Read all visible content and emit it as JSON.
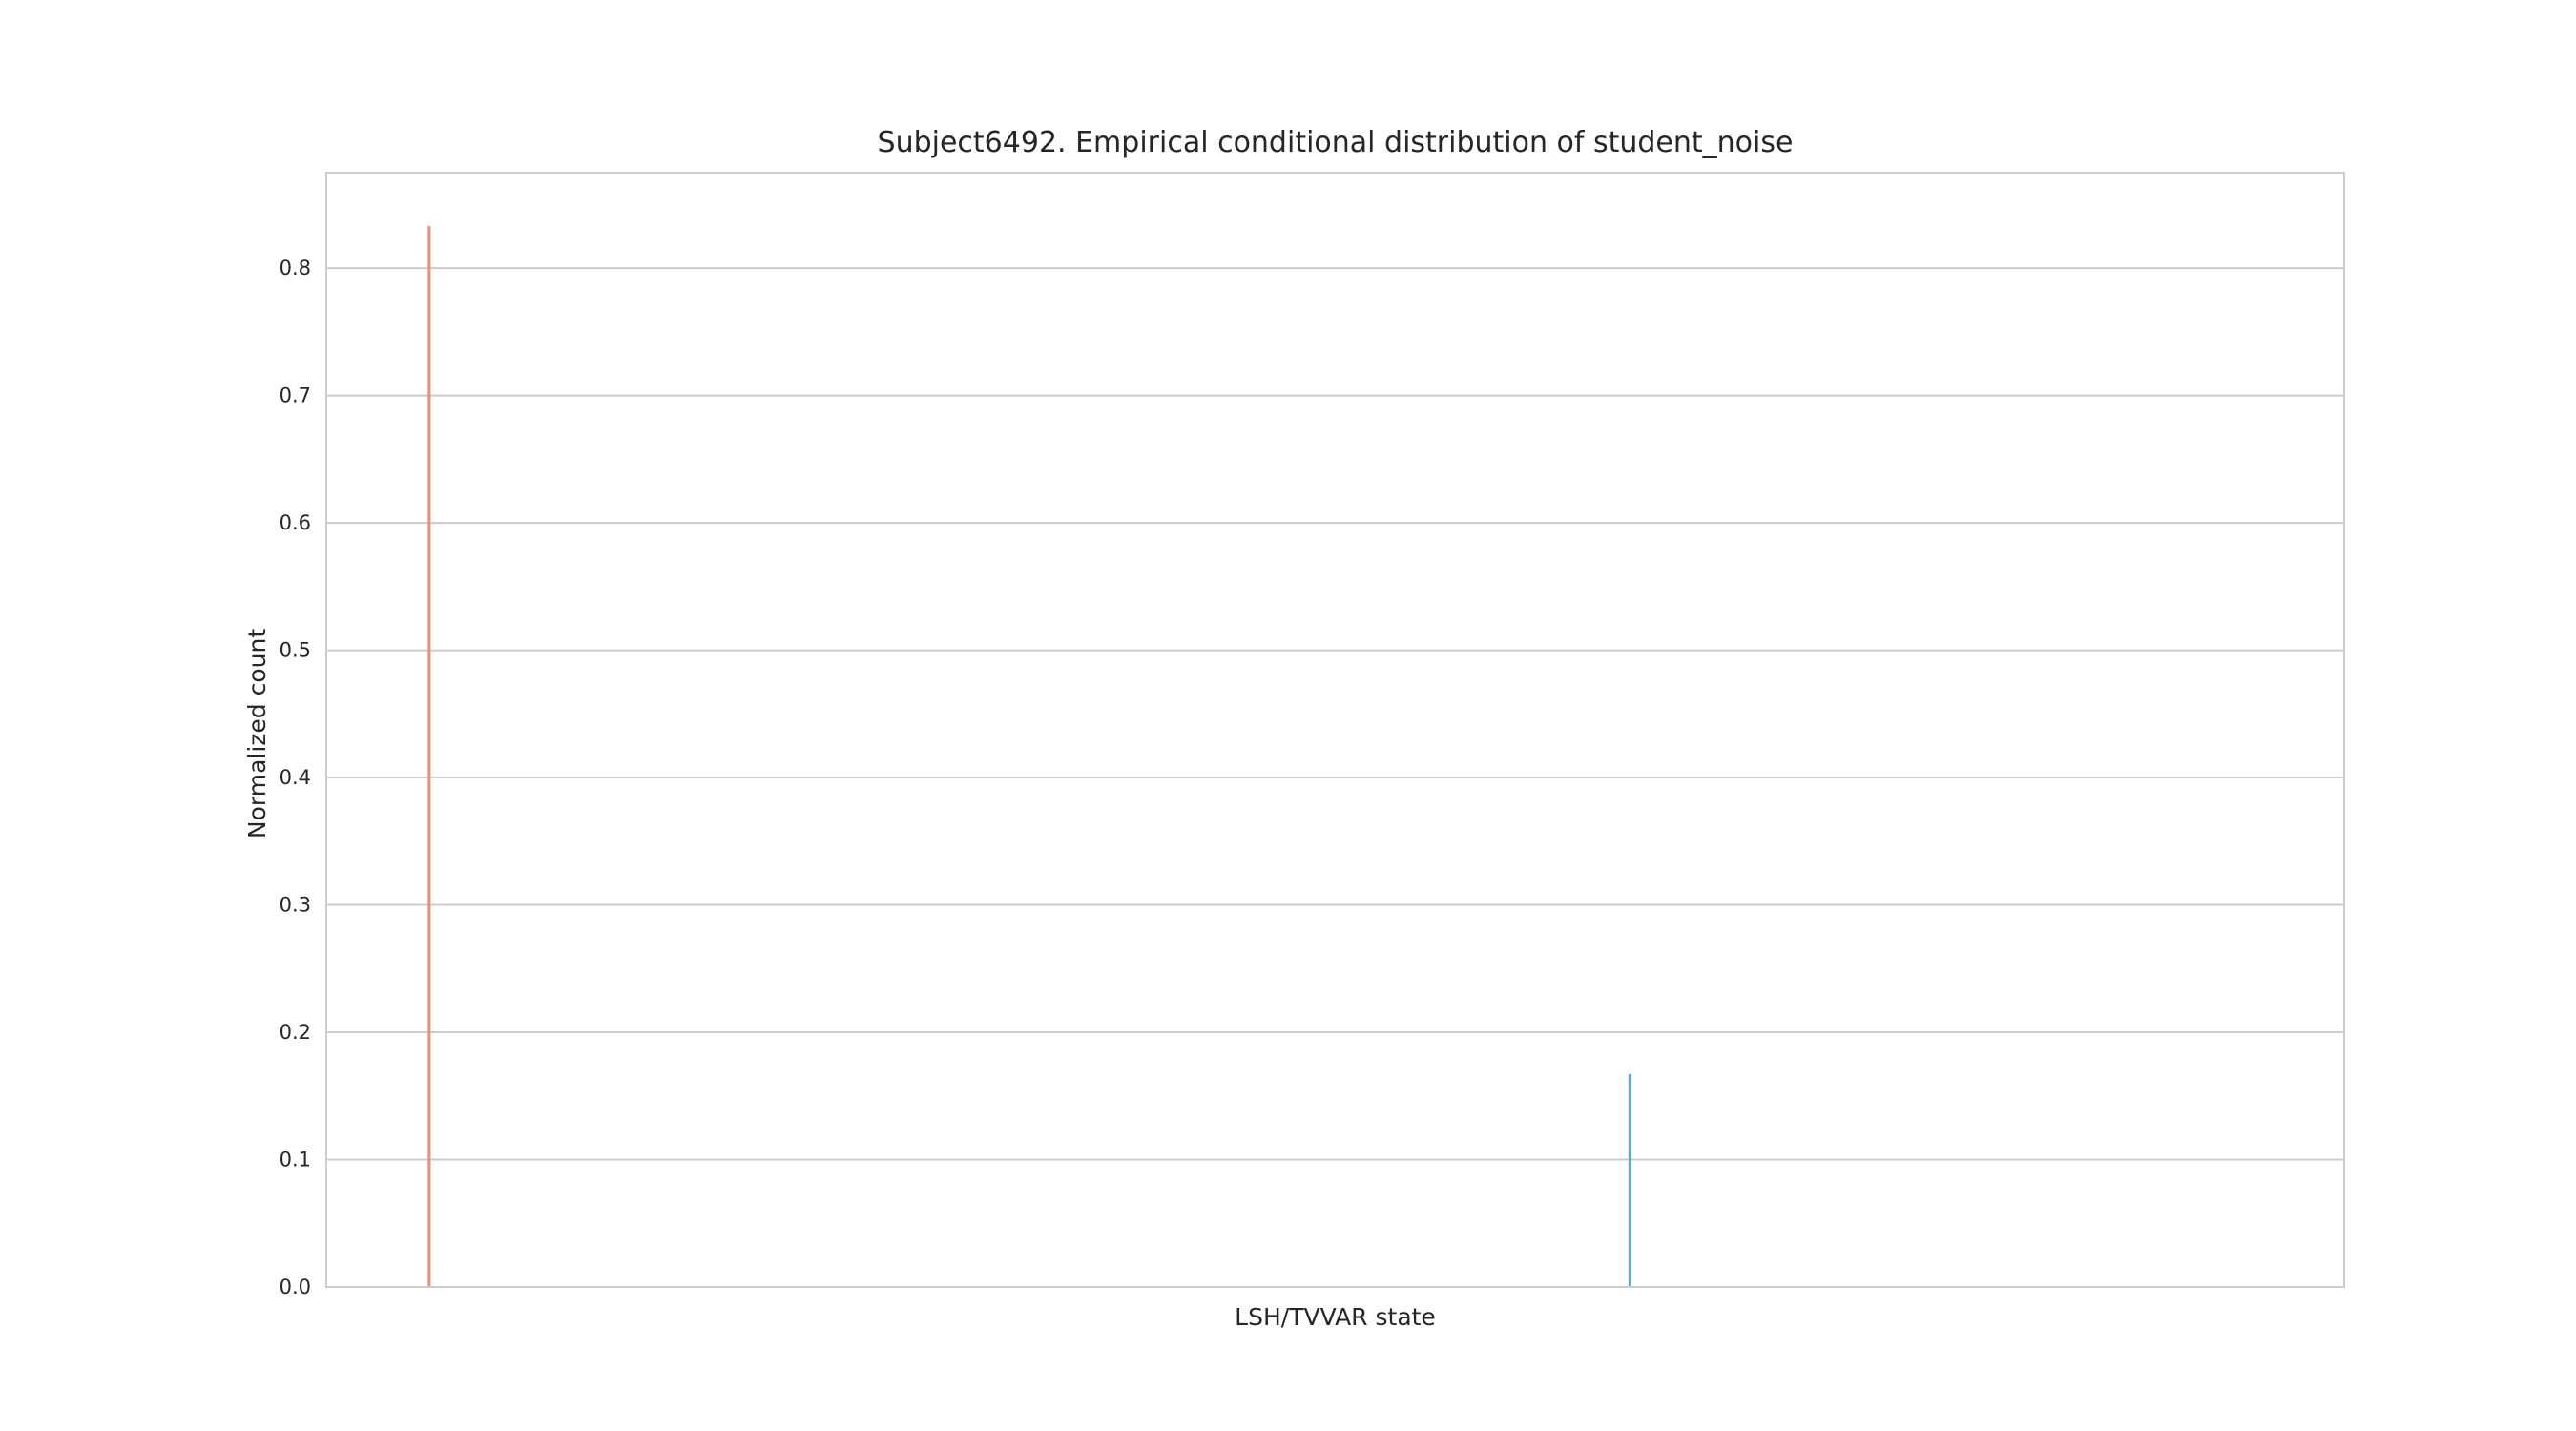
{
  "chart_data": {
    "type": "bar",
    "title": "Subject6492. Empirical conditional distribution of student_noise",
    "xlabel": "LSH/TVVAR state",
    "ylabel": "Normalized count",
    "ylim": [
      0,
      0.875
    ],
    "yticks": [
      0.0,
      0.1,
      0.2,
      0.3,
      0.4,
      0.5,
      0.6,
      0.7,
      0.8
    ],
    "ytick_labels": [
      "0.0",
      "0.1",
      "0.2",
      "0.3",
      "0.4",
      "0.5",
      "0.6",
      "0.7",
      "0.8"
    ],
    "xlim": [
      0,
      1
    ],
    "grid": "horizontal",
    "bars": [
      {
        "x": 0.051,
        "value": 0.833,
        "color": "#e8907c"
      },
      {
        "x": 0.646,
        "value": 0.167,
        "color": "#4bb4de"
      }
    ]
  }
}
